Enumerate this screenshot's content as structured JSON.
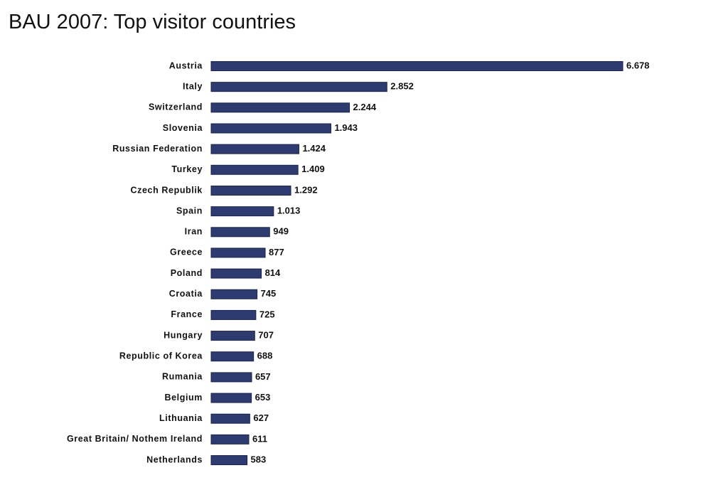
{
  "chart_data": {
    "type": "bar",
    "orientation": "horizontal",
    "title": "BAU 2007: Top visitor countries",
    "categories": [
      "Austria",
      "Italy",
      "Switzerland",
      "Slovenia",
      "Russian Federation",
      "Turkey",
      "Czech Republik",
      "Spain",
      "Iran",
      "Greece",
      "Poland",
      "Croatia",
      "France",
      "Hungary",
      "Republic of Korea",
      "Rumania",
      "Belgium",
      "Lithuania",
      "Great Britain/ Nothem Ireland",
      "Netherlands"
    ],
    "values": [
      6678,
      2852,
      2244,
      1943,
      1424,
      1409,
      1292,
      1013,
      949,
      877,
      814,
      745,
      725,
      707,
      688,
      657,
      653,
      627,
      611,
      583
    ],
    "value_labels": [
      "6.678",
      "2.852",
      "2.244",
      "1.943",
      "1.424",
      "1.409",
      "1.292",
      "1.013",
      "949",
      "877",
      "814",
      "745",
      "725",
      "707",
      "688",
      "657",
      "653",
      "627",
      "611",
      "583"
    ],
    "color": "#2e3b70"
  }
}
